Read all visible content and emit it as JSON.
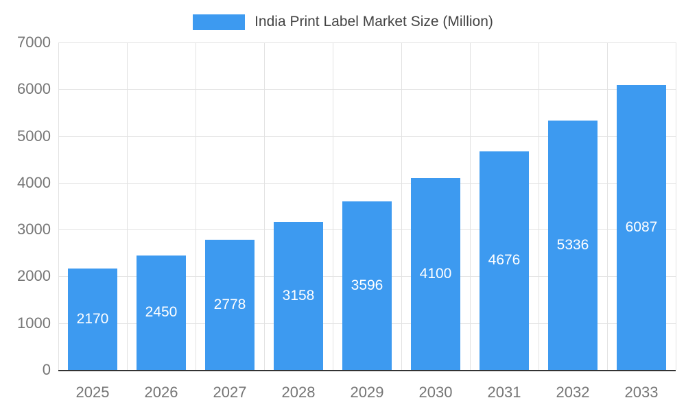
{
  "chart_data": {
    "type": "bar",
    "title": "India Print Label Market Size (Million)",
    "categories": [
      "2025",
      "2026",
      "2027",
      "2028",
      "2029",
      "2030",
      "2031",
      "2032",
      "2033"
    ],
    "values": [
      2170,
      2450,
      2778,
      3158,
      3596,
      4100,
      4676,
      5336,
      6087
    ],
    "xlabel": "",
    "ylabel": "",
    "ylim": [
      0,
      7000
    ],
    "ytick_step": 1000,
    "grid": true,
    "legend_position": "top",
    "bar_width_ratio": 0.72,
    "colors": {
      "bar": "#3D9AF0",
      "value_label": "#FFFFFF",
      "axis_text": "#757575",
      "grid": "#E2E2E2",
      "axis_line": "#333333",
      "title_text": "#434343"
    }
  }
}
